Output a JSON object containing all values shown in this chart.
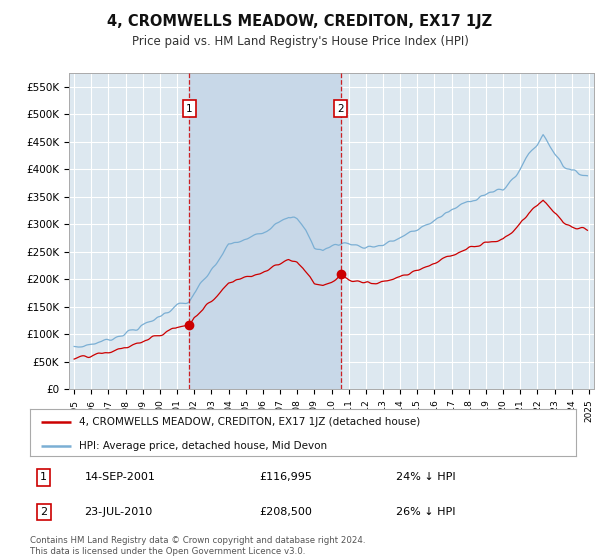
{
  "title": "4, CROMWELLS MEADOW, CREDITON, EX17 1JZ",
  "subtitle": "Price paid vs. HM Land Registry's House Price Index (HPI)",
  "legend_line1": "4, CROMWELLS MEADOW, CREDITON, EX17 1JZ (detached house)",
  "legend_line2": "HPI: Average price, detached house, Mid Devon",
  "annotation1": {
    "label": "1",
    "date": "14-SEP-2001",
    "price": "£116,995",
    "pct": "24% ↓ HPI"
  },
  "annotation2": {
    "label": "2",
    "date": "23-JUL-2010",
    "price": "£208,500",
    "pct": "26% ↓ HPI"
  },
  "footer": "Contains HM Land Registry data © Crown copyright and database right 2024.\nThis data is licensed under the Open Government Licence v3.0.",
  "ylim": [
    0,
    575000
  ],
  "yticks": [
    0,
    50000,
    100000,
    150000,
    200000,
    250000,
    300000,
    350000,
    400000,
    450000,
    500000,
    550000
  ],
  "ytick_labels": [
    "£0",
    "£50K",
    "£100K",
    "£150K",
    "£200K",
    "£250K",
    "£300K",
    "£350K",
    "£400K",
    "£450K",
    "£500K",
    "£550K"
  ],
  "background_color": "#dde8f0",
  "shade_color": "#c8d8e8",
  "grid_color": "#ffffff",
  "red_color": "#cc0000",
  "blue_color": "#7bafd4",
  "purchase1_x": 2001.71,
  "purchase1_y": 116995,
  "purchase2_x": 2010.55,
  "purchase2_y": 208500,
  "xlim_left": 1994.7,
  "xlim_right": 2025.3
}
